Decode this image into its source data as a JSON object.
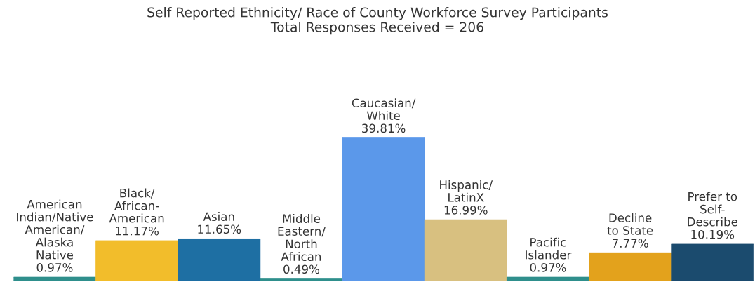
{
  "chart_data": {
    "type": "bar",
    "title": "Self Reported Ethnicity/ Race of County Workforce Survey Participants",
    "subtitle": "Total Responses Received = 206",
    "categories": [
      "American\nIndian/Native\nAmerican/\nAlaska\nNative",
      "Black/\nAfrican-\nAmerican",
      "Asian",
      "Middle\nEastern/\nNorth\nAfrican",
      "Caucasian/\nWhite",
      "Hispanic/\nLatinX",
      "Pacific\nIslander",
      "Decline\nto State",
      "Prefer to\nSelf-\nDescribe"
    ],
    "values": [
      0.97,
      11.17,
      11.65,
      0.49,
      39.81,
      16.99,
      0.97,
      7.77,
      10.19
    ],
    "value_labels": [
      "0.97%",
      "11.17%",
      "11.65%",
      "0.49%",
      "39.81%",
      "16.99%",
      "0.97%",
      "7.77%",
      "10.19%"
    ],
    "colors": [
      "#2f8f8c",
      "#f2bd2b",
      "#1e6fa3",
      "#2f8f8c",
      "#5b98ea",
      "#d8c080",
      "#2f8f8c",
      "#e3a21c",
      "#1b4b6e"
    ]
  }
}
